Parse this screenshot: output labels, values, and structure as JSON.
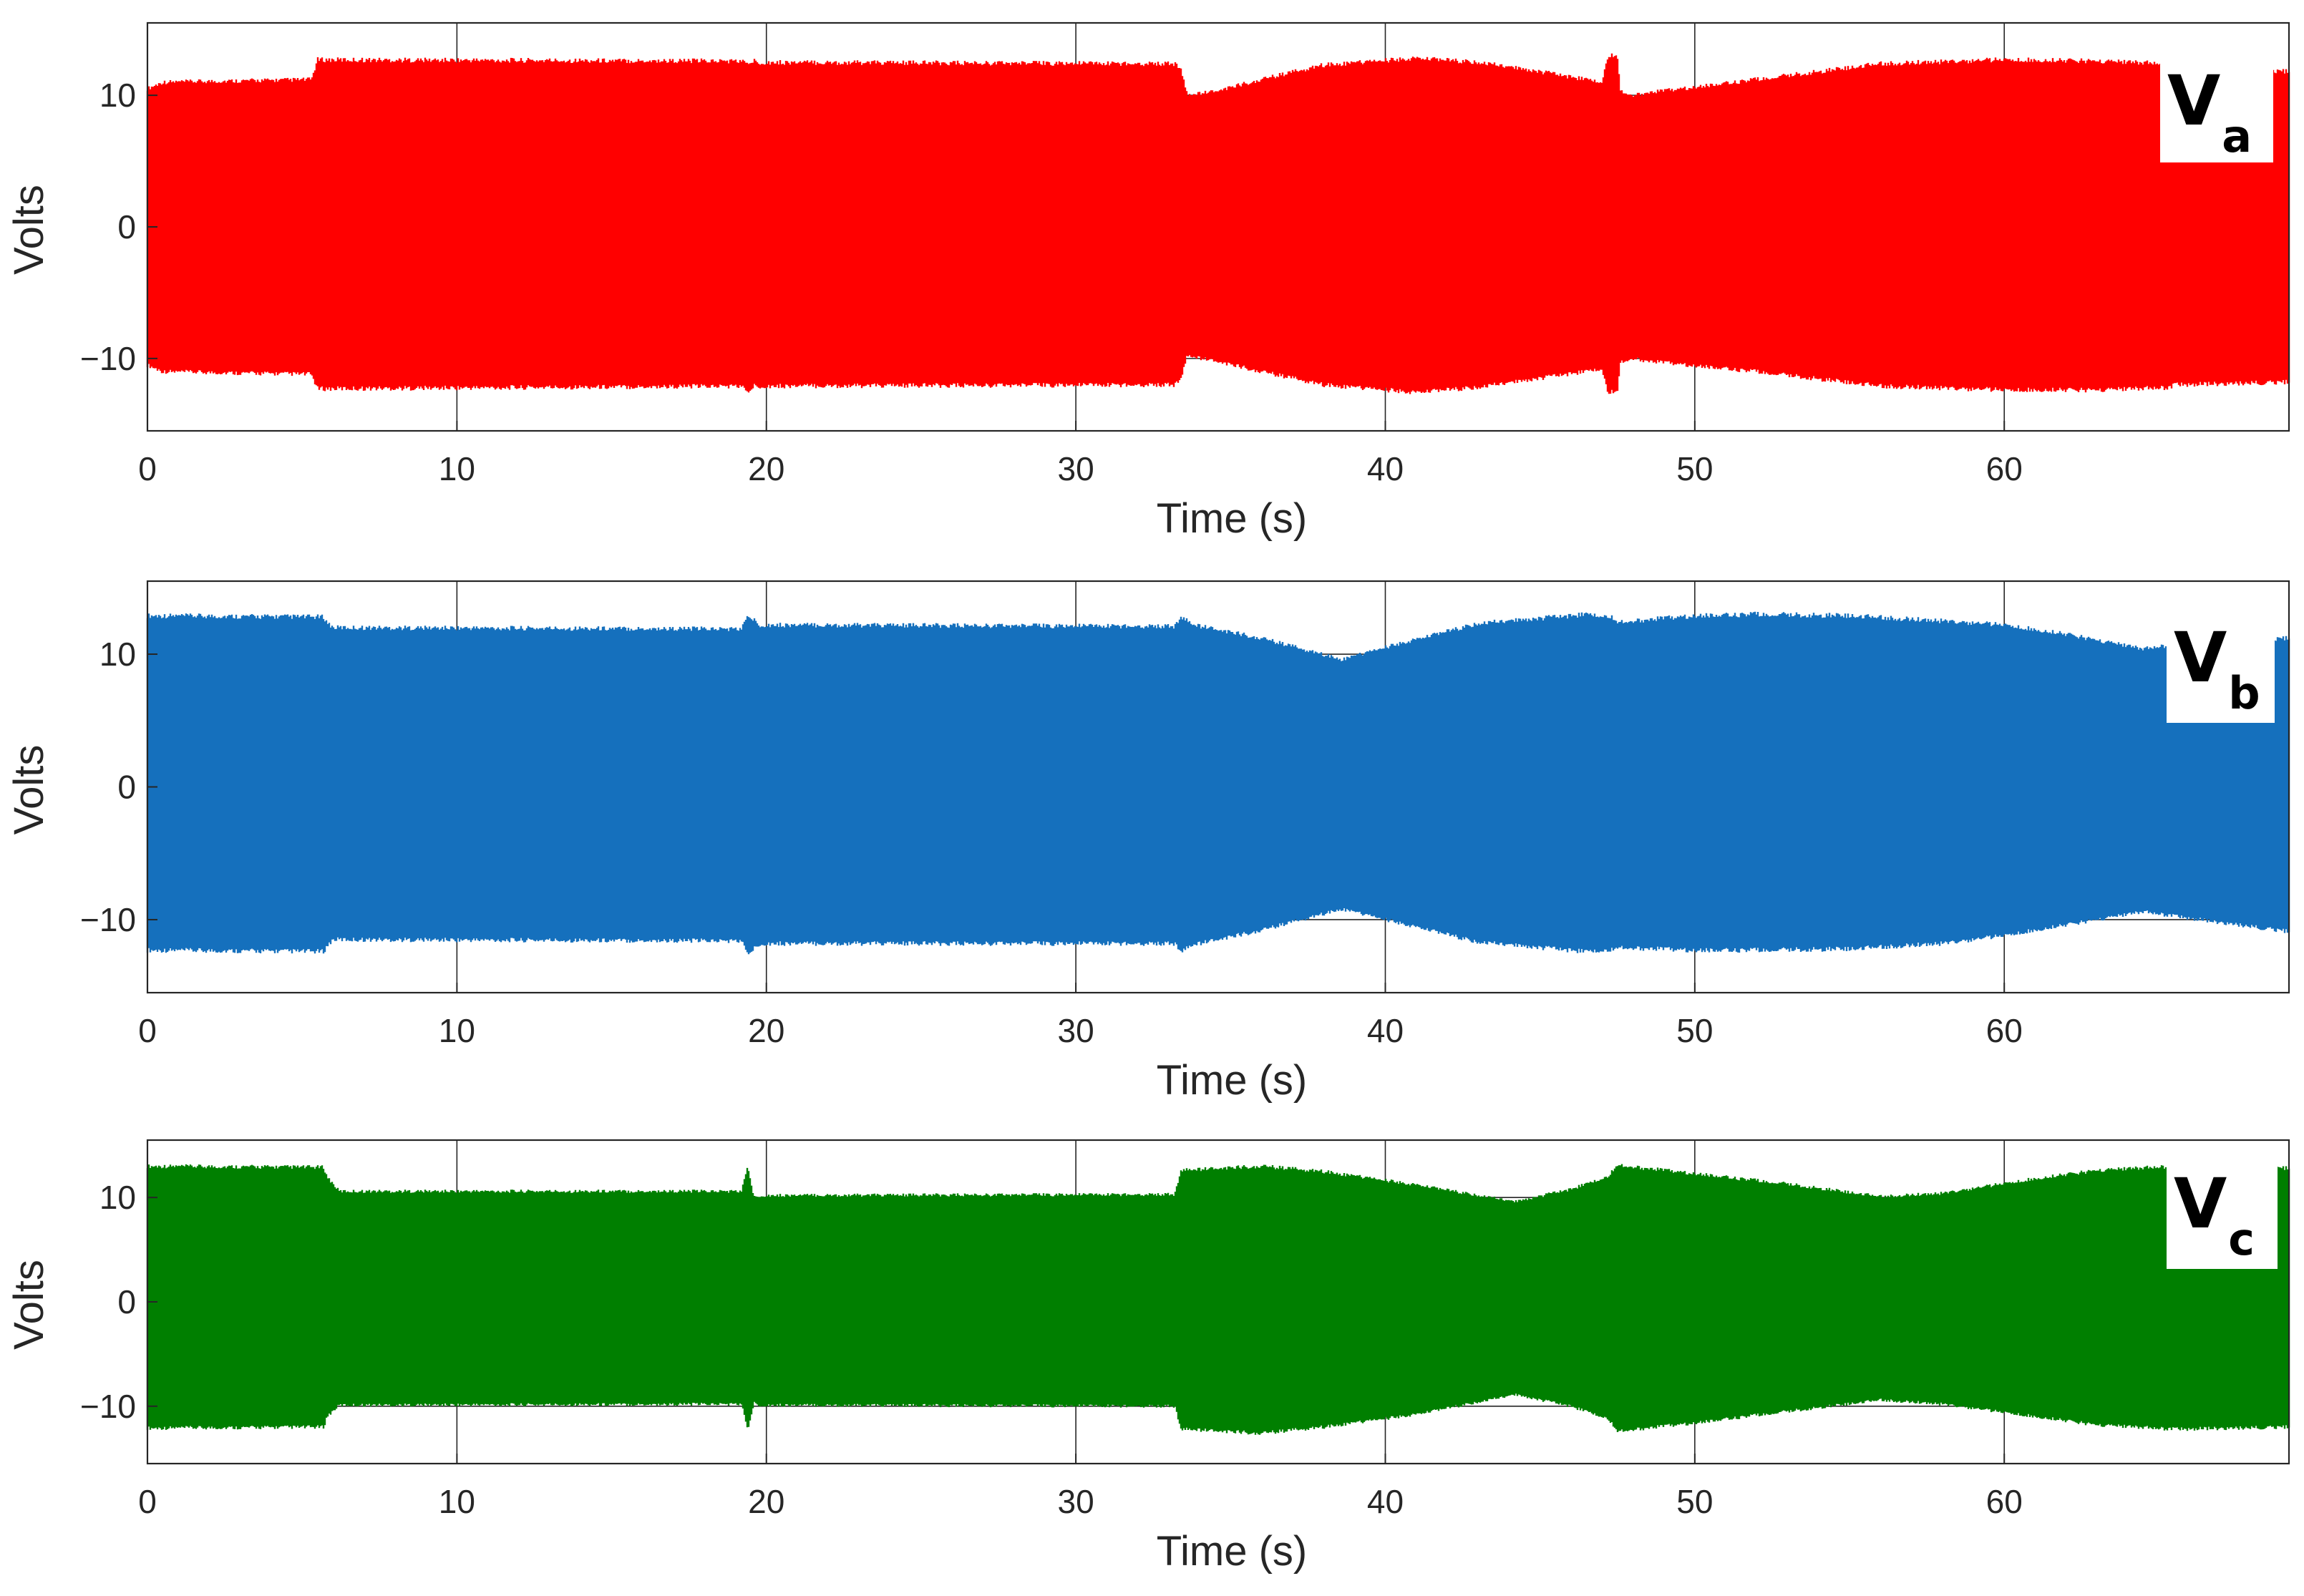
{
  "figure": {
    "background": "#ffffff"
  },
  "chart_data": [
    {
      "type": "area",
      "id": "va",
      "xlabel": "Time (s)",
      "ylabel": "Volts",
      "xlim": [
        0,
        69.2
      ],
      "ylim": [
        -15.5,
        15.5
      ],
      "xticks": [
        0,
        10,
        20,
        30,
        40,
        50,
        60
      ],
      "yticks": [
        10,
        0,
        -10
      ],
      "grid": true,
      "label": {
        "main": "V",
        "sub": "a"
      },
      "label_position": "top-right",
      "series": [
        {
          "color": "#ff0000",
          "envelope": {
            "x": [
              0,
              0.5,
              5.3,
              5.5,
              19.2,
              19.4,
              19.6,
              19.8,
              33.2,
              33.4,
              33.6,
              34.5,
              36,
              38,
              41,
              43,
              45,
              47.0,
              47.2,
              47.5,
              47.6,
              48.0,
              48.5,
              52,
              56,
              60,
              63,
              65.4,
              65.5,
              69.2
            ],
            "upper": [
              10.5,
              11.0,
              11.2,
              12.7,
              12.6,
              12.4,
              12.6,
              12.5,
              12.4,
              12.0,
              10.0,
              10.3,
              11.2,
              12.3,
              12.8,
              12.5,
              11.8,
              11.0,
              13.0,
              13.0,
              10.3,
              10.0,
              10.2,
              11.2,
              12.4,
              12.7,
              12.6,
              12.4,
              12.2,
              11.8
            ],
            "lower": [
              -10.5,
              -11.0,
              -11.2,
              -12.3,
              -12.1,
              -12.6,
              -12.1,
              -12.1,
              -12.0,
              -11.5,
              -9.8,
              -10.2,
              -11.0,
              -12.0,
              -12.6,
              -12.2,
              -11.5,
              -10.8,
              -12.6,
              -12.5,
              -10.3,
              -10.0,
              -10.2,
              -11.0,
              -12.1,
              -12.4,
              -12.4,
              -12.2,
              -12.0,
              -11.8
            ]
          }
        }
      ]
    },
    {
      "type": "area",
      "id": "vb",
      "xlabel": "Time (s)",
      "ylabel": "Volts",
      "xlim": [
        0,
        69.2
      ],
      "ylim": [
        -15.5,
        15.5
      ],
      "xticks": [
        0,
        10,
        20,
        30,
        40,
        50,
        60
      ],
      "yticks": [
        10,
        0,
        -10
      ],
      "grid": true,
      "label": {
        "main": "V",
        "sub": "b"
      },
      "label_position": "top-right",
      "series": [
        {
          "color": "#1570bd",
          "envelope": {
            "x": [
              0,
              5.7,
              5.8,
              6.0,
              19.2,
              19.4,
              19.8,
              33.2,
              33.4,
              33.8,
              36,
              38.6,
              40,
              43,
              46.5,
              47.3,
              47.5,
              50,
              52,
              55,
              58,
              60,
              62,
              64.5,
              66,
              69.2
            ],
            "upper": [
              12.9,
              12.8,
              12.4,
              12.0,
              11.9,
              12.9,
              12.2,
              12.1,
              12.8,
              12.2,
              11.2,
              9.6,
              10.5,
              12.3,
              13.0,
              12.8,
              12.4,
              12.9,
              13.0,
              12.9,
              12.5,
              12.2,
              11.5,
              10.4,
              10.9,
              11.2
            ],
            "lower": [
              -12.3,
              -12.4,
              -12.0,
              -11.5,
              -11.6,
              -12.6,
              -11.8,
              -11.8,
              -12.4,
              -11.9,
              -10.8,
              -9.2,
              -10.0,
              -11.7,
              -12.4,
              -12.3,
              -12.1,
              -12.3,
              -12.3,
              -12.2,
              -11.8,
              -11.2,
              -10.4,
              -9.4,
              -9.9,
              -10.9
            ]
          }
        }
      ]
    },
    {
      "type": "area",
      "id": "vc",
      "xlabel": "Time (s)",
      "ylabel": "Volts",
      "xlim": [
        0,
        69.2
      ],
      "ylim": [
        -15.5,
        15.5
      ],
      "xticks": [
        0,
        10,
        20,
        30,
        40,
        50,
        60
      ],
      "yticks": [
        10,
        0,
        -10
      ],
      "grid": true,
      "label": {
        "main": "V",
        "sub": "c"
      },
      "label_position": "top-right",
      "series": [
        {
          "color": "#007f00",
          "envelope": {
            "x": [
              0,
              5.7,
              5.8,
              6.2,
              19.2,
              19.4,
              19.6,
              19.8,
              33.2,
              33.4,
              36,
              38,
              41,
              44.2,
              46,
              47.2,
              47.5,
              50,
              53,
              56,
              58,
              61,
              63,
              65.5,
              69.2
            ],
            "upper": [
              13.0,
              12.9,
              12.0,
              10.6,
              10.6,
              13.0,
              10.0,
              10.2,
              10.3,
              12.6,
              13.0,
              12.5,
              11.2,
              9.6,
              10.8,
              12.0,
              13.1,
              12.3,
              11.3,
              10.1,
              10.4,
              11.8,
              12.6,
              13.0,
              12.8
            ],
            "lower": [
              -12.1,
              -12.0,
              -11.0,
              -9.9,
              -9.8,
              -12.3,
              -9.7,
              -9.9,
              -10.0,
              -12.2,
              -12.6,
              -12.0,
              -10.8,
              -8.9,
              -10.0,
              -11.2,
              -12.4,
              -11.6,
              -10.5,
              -9.4,
              -9.8,
              -11.0,
              -11.8,
              -12.2,
              -12.0
            ]
          }
        }
      ]
    }
  ]
}
